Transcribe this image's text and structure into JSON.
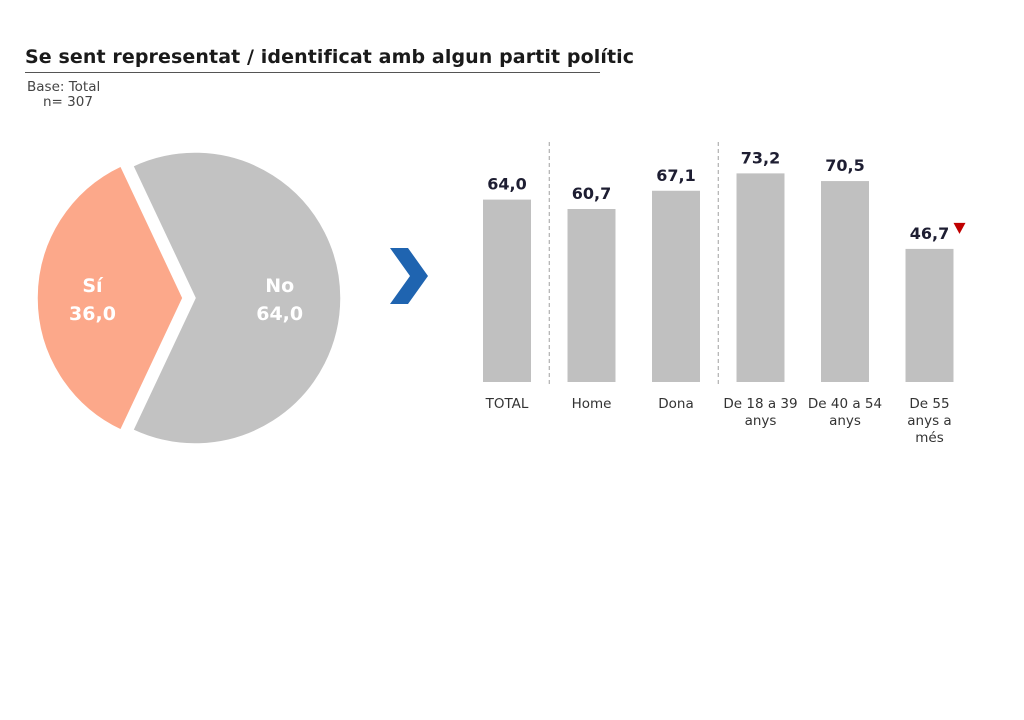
{
  "title": "Se sent representat / identificat amb algun partit polític",
  "base": {
    "label": "Base: Total",
    "n": "n= 307"
  },
  "colors": {
    "si": "#FCA88A",
    "no": "#C2C2C2",
    "bar": "#C0C0C0",
    "arrow": "#1F64B0",
    "marker": "#C00000",
    "text": "#1E1E32"
  },
  "chart_data": [
    {
      "type": "pie",
      "slices": [
        {
          "name": "Sí",
          "value": 36.0,
          "label": "36,0"
        },
        {
          "name": "No",
          "value": 64.0,
          "label": "64,0"
        }
      ]
    },
    {
      "type": "bar",
      "categories": [
        "TOTAL",
        "Home",
        "Dona",
        "De 18 a 39 anys",
        "De 40 a 54 anys",
        "De 55 anys a més"
      ],
      "category_lines": [
        [
          "TOTAL"
        ],
        [
          "Home"
        ],
        [
          "Dona"
        ],
        [
          "De 18 a 39",
          "anys"
        ],
        [
          "De 40 a 54",
          "anys"
        ],
        [
          "De 55",
          "anys a",
          "més"
        ]
      ],
      "values": [
        64.0,
        60.7,
        67.1,
        73.2,
        70.5,
        46.7
      ],
      "value_labels": [
        "64,0",
        "60,7",
        "67,1",
        "73,2",
        "70,5",
        "46,7"
      ],
      "significance_down": [
        false,
        false,
        false,
        false,
        false,
        true
      ],
      "separators_after": [
        0,
        2
      ]
    }
  ]
}
